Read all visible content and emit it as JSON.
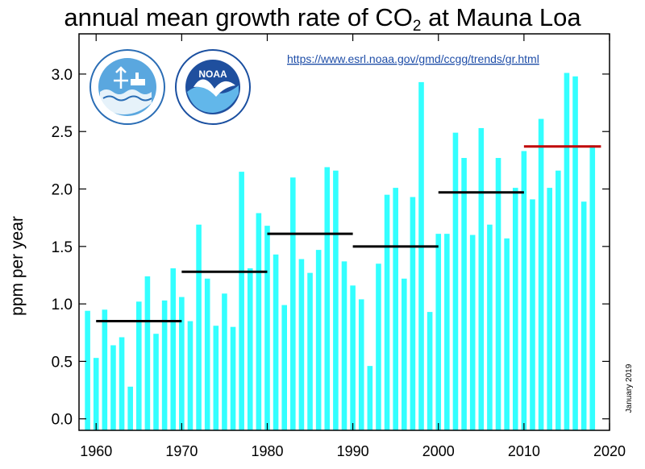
{
  "title": {
    "prefix": "annual mean growth rate of CO",
    "subscript": "2",
    "suffix": " at Mauna Loa"
  },
  "url": "https://www.esrl.noaa.gov/gmd/ccgg/trends/gr.html",
  "stamp": "January 2019",
  "logos": [
    "scripps-institution-of-oceanography-seal",
    "noaa-logo"
  ],
  "chart_data": {
    "type": "bar",
    "ylabel": "ppm per year",
    "xlim": [
      1958,
      2020
    ],
    "ylim": [
      -0.1,
      3.35
    ],
    "x_ticks": [
      1960,
      1970,
      1980,
      1990,
      2000,
      2010,
      2020
    ],
    "y_ticks": [
      "0.0",
      "0.5",
      "1.0",
      "1.5",
      "2.0",
      "2.5",
      "3.0"
    ],
    "bar_color": "#33ffff",
    "x": [
      1959,
      1960,
      1961,
      1962,
      1963,
      1964,
      1965,
      1966,
      1967,
      1968,
      1969,
      1970,
      1971,
      1972,
      1973,
      1974,
      1975,
      1976,
      1977,
      1978,
      1979,
      1980,
      1981,
      1982,
      1983,
      1984,
      1985,
      1986,
      1987,
      1988,
      1989,
      1990,
      1991,
      1992,
      1993,
      1994,
      1995,
      1996,
      1997,
      1998,
      1999,
      2000,
      2001,
      2002,
      2003,
      2004,
      2005,
      2006,
      2007,
      2008,
      2009,
      2010,
      2011,
      2012,
      2013,
      2014,
      2015,
      2016,
      2017,
      2018
    ],
    "values": [
      0.94,
      0.53,
      0.95,
      0.64,
      0.71,
      0.28,
      1.02,
      1.24,
      0.74,
      1.03,
      1.31,
      1.06,
      0.85,
      1.69,
      1.22,
      0.81,
      1.09,
      0.8,
      2.15,
      1.31,
      1.79,
      1.68,
      1.43,
      0.99,
      2.1,
      1.39,
      1.27,
      1.47,
      2.19,
      2.16,
      1.37,
      1.16,
      1.04,
      0.46,
      1.35,
      1.95,
      2.01,
      1.22,
      1.93,
      2.93,
      0.93,
      1.61,
      1.61,
      2.49,
      2.27,
      1.6,
      2.53,
      1.69,
      2.27,
      1.57,
      2.01,
      2.33,
      1.91,
      2.61,
      2.01,
      2.16,
      3.01,
      2.98,
      1.89,
      2.38
    ],
    "decade_means": [
      {
        "start": 1960,
        "end": 1970,
        "value": 0.85,
        "color": "#000000"
      },
      {
        "start": 1970,
        "end": 1980,
        "value": 1.28,
        "color": "#000000"
      },
      {
        "start": 1980,
        "end": 1990,
        "value": 1.61,
        "color": "#000000"
      },
      {
        "start": 1990,
        "end": 2000,
        "value": 1.5,
        "color": "#000000"
      },
      {
        "start": 2000,
        "end": 2010,
        "value": 1.97,
        "color": "#000000"
      },
      {
        "start": 2010,
        "end": 2019,
        "value": 2.37,
        "color": "#c00000"
      }
    ]
  }
}
